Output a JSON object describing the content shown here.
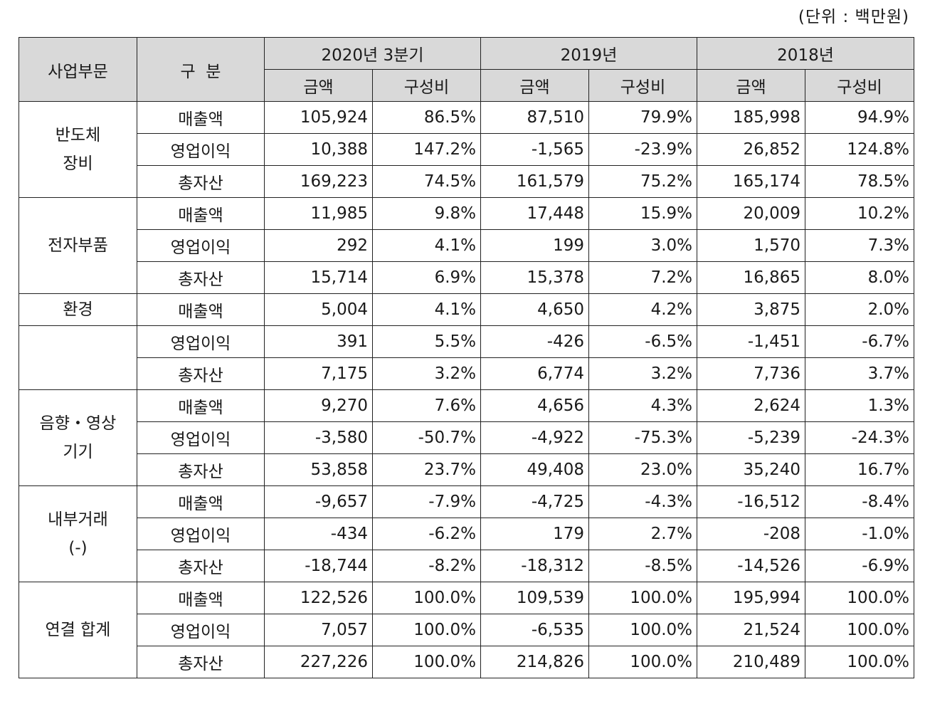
{
  "unit_note": "(단위 : 백만원)",
  "header": {
    "segment": "사업부문",
    "division": "구  분",
    "periods": [
      "2020년 3분기",
      "2019년",
      "2018년"
    ],
    "amount": "금액",
    "ratio": "구성비"
  },
  "groups": [
    {
      "segment": "반도체\n장비",
      "rows": [
        {
          "item": "매출액",
          "vals": [
            "105,924",
            "86.5%",
            "87,510",
            "79.9%",
            "185,998",
            "94.9%"
          ]
        },
        {
          "item": "영업이익",
          "vals": [
            "10,388",
            "147.2%",
            "-1,565",
            "-23.9%",
            "26,852",
            "124.8%"
          ]
        },
        {
          "item": "총자산",
          "vals": [
            "169,223",
            "74.5%",
            "161,579",
            "75.2%",
            "165,174",
            "78.5%"
          ]
        }
      ]
    },
    {
      "segment": "전자부품",
      "rows": [
        {
          "item": "매출액",
          "vals": [
            "11,985",
            "9.8%",
            "17,448",
            "15.9%",
            "20,009",
            "10.2%"
          ]
        },
        {
          "item": "영업이익",
          "vals": [
            "292",
            "4.1%",
            "199",
            "3.0%",
            "1,570",
            "7.3%"
          ]
        },
        {
          "item": "총자산",
          "vals": [
            "15,714",
            "6.9%",
            "15,378",
            "7.2%",
            "16,865",
            "8.0%"
          ]
        }
      ]
    },
    {
      "segment": "환경",
      "rows": [
        {
          "item": "매출액",
          "vals": [
            "5,004",
            "4.1%",
            "4,650",
            "4.2%",
            "3,875",
            "2.0%"
          ]
        }
      ]
    },
    {
      "segment": "",
      "rows": [
        {
          "item": "영업이익",
          "vals": [
            "391",
            "5.5%",
            "-426",
            "-6.5%",
            "-1,451",
            "-6.7%"
          ]
        },
        {
          "item": "총자산",
          "vals": [
            "7,175",
            "3.2%",
            "6,774",
            "3.2%",
            "7,736",
            "3.7%"
          ]
        }
      ]
    },
    {
      "segment": "음향・영상\n기기",
      "rows": [
        {
          "item": "매출액",
          "vals": [
            "9,270",
            "7.6%",
            "4,656",
            "4.3%",
            "2,624",
            "1.3%"
          ]
        },
        {
          "item": "영업이익",
          "vals": [
            "-3,580",
            "-50.7%",
            "-4,922",
            "-75.3%",
            "-5,239",
            "-24.3%"
          ]
        },
        {
          "item": "총자산",
          "vals": [
            "53,858",
            "23.7%",
            "49,408",
            "23.0%",
            "35,240",
            "16.7%"
          ]
        }
      ]
    },
    {
      "segment": "내부거래\n(-)",
      "rows": [
        {
          "item": "매출액",
          "vals": [
            "-9,657",
            "-7.9%",
            "-4,725",
            "-4.3%",
            "-16,512",
            "-8.4%"
          ]
        },
        {
          "item": "영업이익",
          "vals": [
            "-434",
            "-6.2%",
            "179",
            "2.7%",
            "-208",
            "-1.0%"
          ]
        },
        {
          "item": "총자산",
          "vals": [
            "-18,744",
            "-8.2%",
            "-18,312",
            "-8.5%",
            "-14,526",
            "-6.9%"
          ]
        }
      ]
    },
    {
      "segment": "연결 합계",
      "rows": [
        {
          "item": "매출액",
          "vals": [
            "122,526",
            "100.0%",
            "109,539",
            "100.0%",
            "195,994",
            "100.0%"
          ]
        },
        {
          "item": "영업이익",
          "vals": [
            "7,057",
            "100.0%",
            "-6,535",
            "100.0%",
            "21,524",
            "100.0%"
          ]
        },
        {
          "item": "총자산",
          "vals": [
            "227,226",
            "100.0%",
            "214,826",
            "100.0%",
            "210,489",
            "100.0%"
          ]
        }
      ]
    }
  ],
  "colors": {
    "header_bg": "#d9d9d9",
    "border": "#222222",
    "text": "#1a1a1a"
  }
}
